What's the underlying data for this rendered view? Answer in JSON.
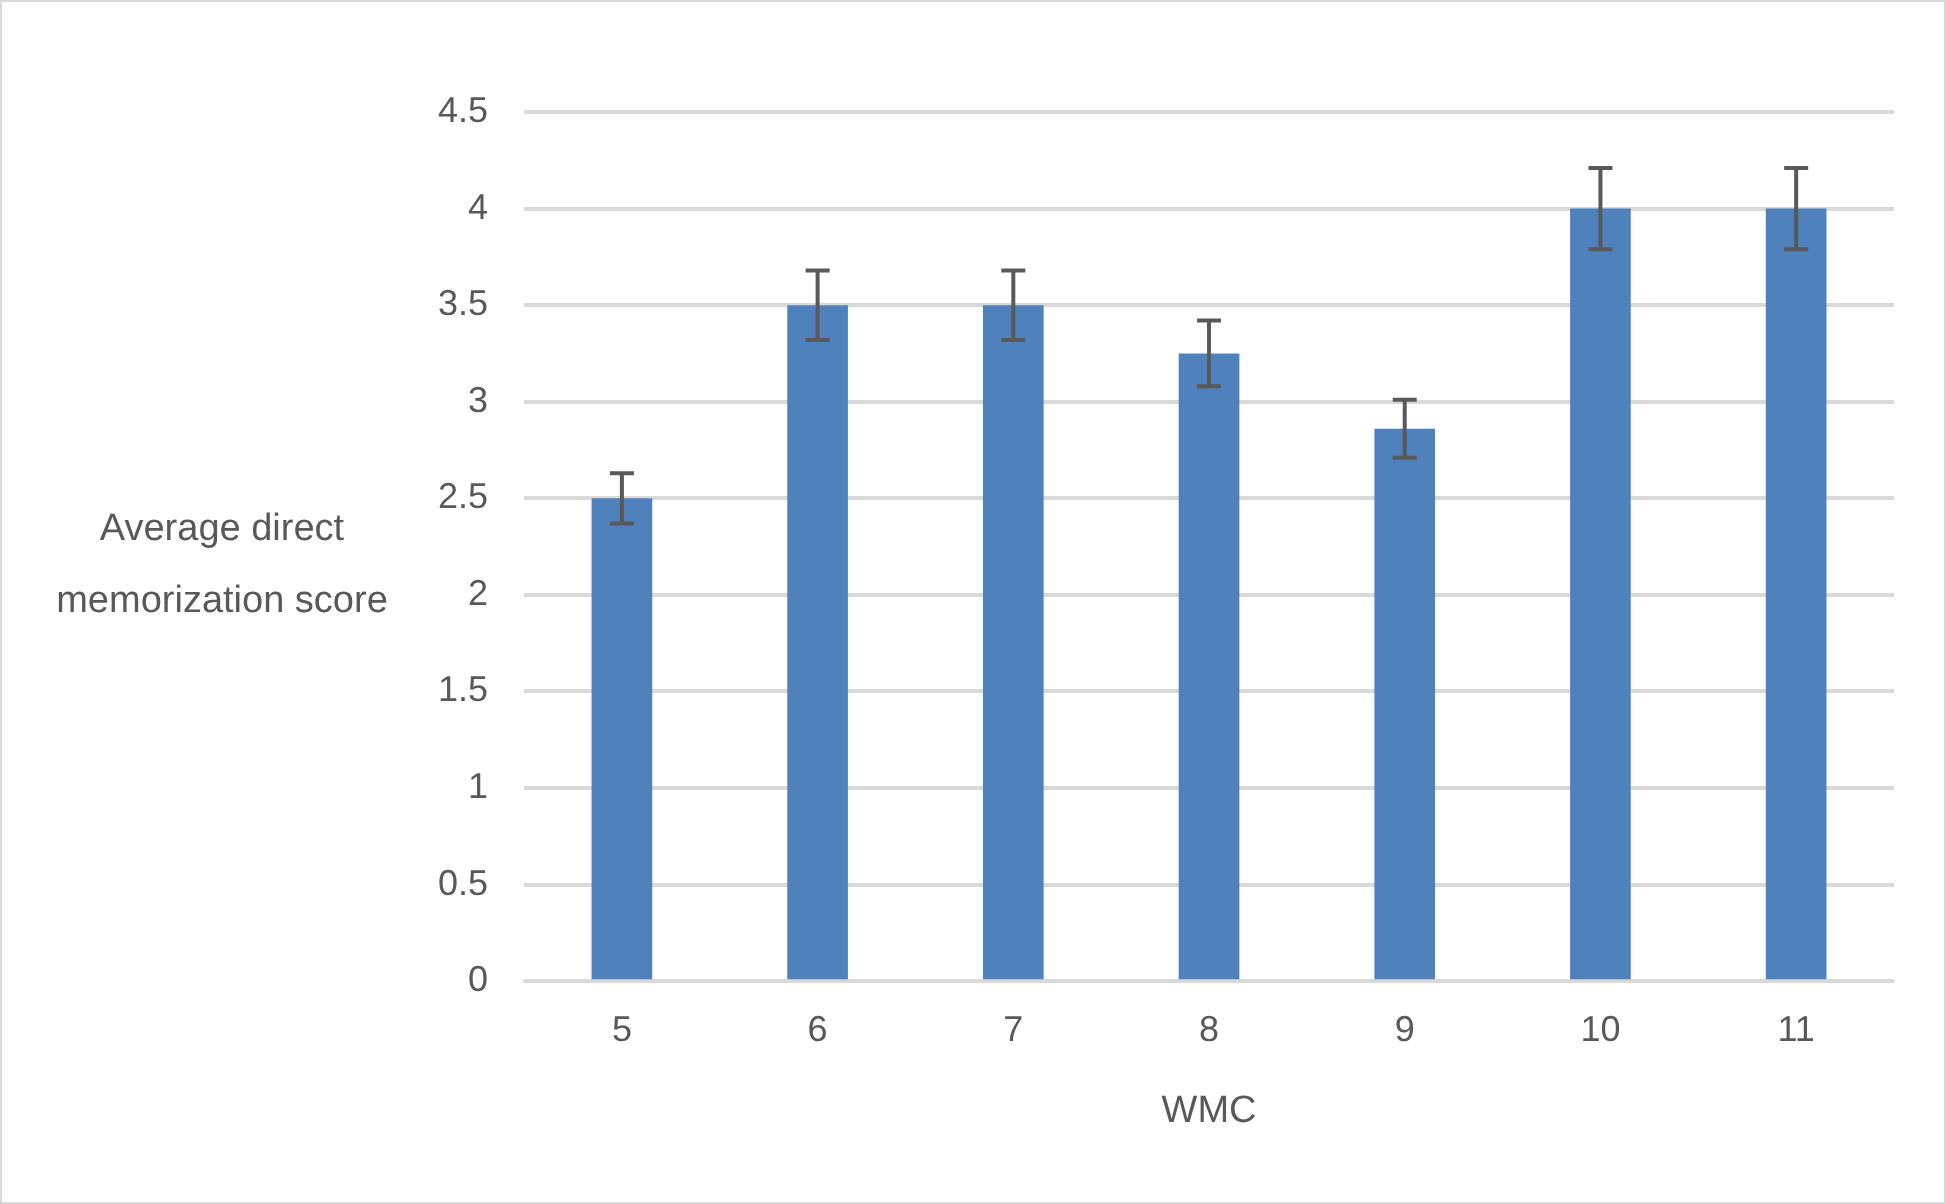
{
  "chart_data": {
    "type": "bar",
    "xlabel": "WMC",
    "ylabel": "Average direct memorization score",
    "categories": [
      "5",
      "6",
      "7",
      "8",
      "9",
      "10",
      "11"
    ],
    "values": [
      2.5,
      3.5,
      3.5,
      3.25,
      2.86,
      4,
      4
    ],
    "errors": [
      0.13,
      0.18,
      0.18,
      0.17,
      0.15,
      0.21,
      0.21
    ],
    "color": "#4f81bd",
    "ylim": [
      0,
      4.5
    ],
    "yticks": [
      0,
      0.5,
      1,
      1.5,
      2,
      2.5,
      3,
      3.5,
      4,
      4.5
    ],
    "grid": "y",
    "legend": false
  }
}
